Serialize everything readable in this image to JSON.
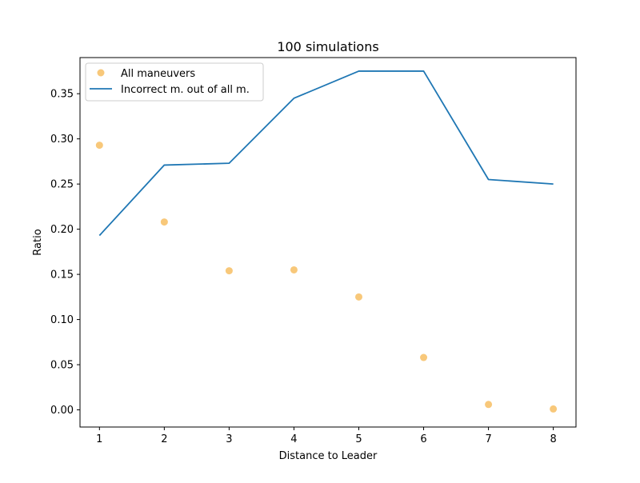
{
  "chart_data": {
    "type": "line",
    "title": "100 simulations",
    "xlabel": "Distance to Leader",
    "ylabel": "Ratio",
    "x": [
      1,
      2,
      3,
      4,
      5,
      6,
      7,
      8
    ],
    "xticks": [
      "1",
      "2",
      "3",
      "4",
      "5",
      "6",
      "7",
      "8"
    ],
    "yticks": [
      "0.00",
      "0.05",
      "0.10",
      "0.15",
      "0.20",
      "0.25",
      "0.30",
      "0.35"
    ],
    "xlim": [
      0.7,
      8.35
    ],
    "ylim": [
      -0.019,
      0.39
    ],
    "grid": false,
    "legend_position": "top-left",
    "series": [
      {
        "name": "All maneuvers",
        "kind": "scatter",
        "color": "#f5b041",
        "values": [
          0.293,
          0.208,
          0.154,
          0.155,
          0.125,
          0.058,
          0.006,
          0.001
        ]
      },
      {
        "name": "Incorrect m. out of all m.",
        "kind": "line",
        "color": "#1f77b4",
        "values": [
          0.193,
          0.271,
          0.273,
          0.345,
          0.375,
          0.375,
          0.255,
          0.25
        ]
      }
    ]
  }
}
